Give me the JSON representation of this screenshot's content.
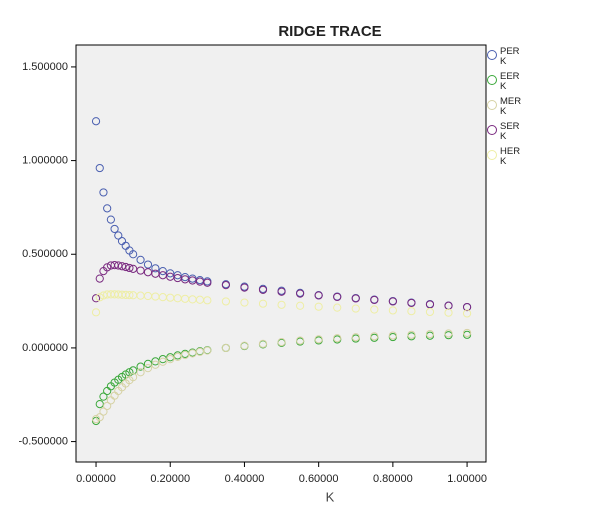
{
  "chart_data": {
    "type": "scatter",
    "title": "RIDGE TRACE",
    "x_label": "K",
    "x": [
      0,
      0.01,
      0.02,
      0.03,
      0.04,
      0.05,
      0.06,
      0.07,
      0.08,
      0.09,
      0.1,
      0.12,
      0.14,
      0.16,
      0.18,
      0.2,
      0.22,
      0.24,
      0.26,
      0.28,
      0.3,
      0.35,
      0.4,
      0.45,
      0.5,
      0.55,
      0.6,
      0.65,
      0.7,
      0.75,
      0.8,
      0.85,
      0.9,
      0.95,
      1.0
    ],
    "series": [
      {
        "name": "PER K",
        "color": "#4a5fb0",
        "values": [
          1.21,
          0.96,
          0.83,
          0.745,
          0.685,
          0.635,
          0.6,
          0.57,
          0.545,
          0.52,
          0.5,
          0.47,
          0.445,
          0.425,
          0.41,
          0.398,
          0.388,
          0.378,
          0.37,
          0.362,
          0.355,
          0.34,
          0.327,
          0.315,
          0.305,
          0.294,
          0.282,
          0.274,
          0.266,
          0.258,
          0.25,
          0.242,
          0.234,
          0.226,
          0.218
        ]
      },
      {
        "name": "EER K",
        "color": "#3aa83a",
        "values": [
          -0.39,
          -0.3,
          -0.26,
          -0.23,
          -0.205,
          -0.185,
          -0.17,
          -0.155,
          -0.142,
          -0.13,
          -0.12,
          -0.1,
          -0.085,
          -0.072,
          -0.06,
          -0.05,
          -0.04,
          -0.032,
          -0.025,
          -0.018,
          -0.012,
          0.0,
          0.01,
          0.019,
          0.027,
          0.034,
          0.04,
          0.045,
          0.05,
          0.054,
          0.058,
          0.062,
          0.065,
          0.068,
          0.07
        ]
      },
      {
        "name": "MER K",
        "color": "#d6d2a4",
        "values": [
          -0.38,
          -0.37,
          -0.34,
          -0.31,
          -0.28,
          -0.255,
          -0.23,
          -0.21,
          -0.19,
          -0.172,
          -0.156,
          -0.13,
          -0.108,
          -0.09,
          -0.074,
          -0.06,
          -0.048,
          -0.038,
          -0.029,
          -0.021,
          -0.014,
          0.0,
          0.012,
          0.022,
          0.031,
          0.039,
          0.046,
          0.052,
          0.057,
          0.062,
          0.066,
          0.07,
          0.074,
          0.077,
          0.08
        ]
      },
      {
        "name": "SER K",
        "color": "#7a2a80",
        "values": [
          0.265,
          0.37,
          0.41,
          0.43,
          0.44,
          0.442,
          0.44,
          0.436,
          0.432,
          0.427,
          0.422,
          0.413,
          0.404,
          0.396,
          0.388,
          0.38,
          0.373,
          0.366,
          0.36,
          0.354,
          0.348,
          0.335,
          0.322,
          0.31,
          0.3,
          0.29,
          0.28,
          0.272,
          0.264,
          0.256,
          0.248,
          0.24,
          0.232,
          0.225,
          0.218
        ]
      },
      {
        "name": "HER K",
        "color": "#eeeea4",
        "values": [
          0.19,
          0.27,
          0.28,
          0.285,
          0.286,
          0.286,
          0.285,
          0.284,
          0.283,
          0.282,
          0.281,
          0.279,
          0.277,
          0.274,
          0.271,
          0.268,
          0.265,
          0.262,
          0.259,
          0.257,
          0.254,
          0.248,
          0.242,
          0.236,
          0.23,
          0.225,
          0.22,
          0.215,
          0.21,
          0.205,
          0.2,
          0.196,
          0.192,
          0.188,
          0.184
        ]
      }
    ],
    "xlim": [
      -0.054,
      1.051
    ],
    "ylim": [
      -0.609,
      1.617
    ],
    "xticks": [
      {
        "value": 0,
        "label": "0.00000"
      },
      {
        "value": 0.2,
        "label": "0.20000"
      },
      {
        "value": 0.4,
        "label": "0.40000"
      },
      {
        "value": 0.6,
        "label": "0.60000"
      },
      {
        "value": 0.8,
        "label": "0.80000"
      },
      {
        "value": 1.0,
        "label": "1.00000"
      }
    ],
    "yticks": [
      {
        "value": -0.5,
        "label": "-0.500000"
      },
      {
        "value": 0,
        "label": "0.000000"
      },
      {
        "value": 0.5,
        "label": "0.500000"
      },
      {
        "value": 1.0,
        "label": "1.000000"
      },
      {
        "value": 1.5,
        "label": "1.500000"
      }
    ],
    "legend": "right"
  }
}
